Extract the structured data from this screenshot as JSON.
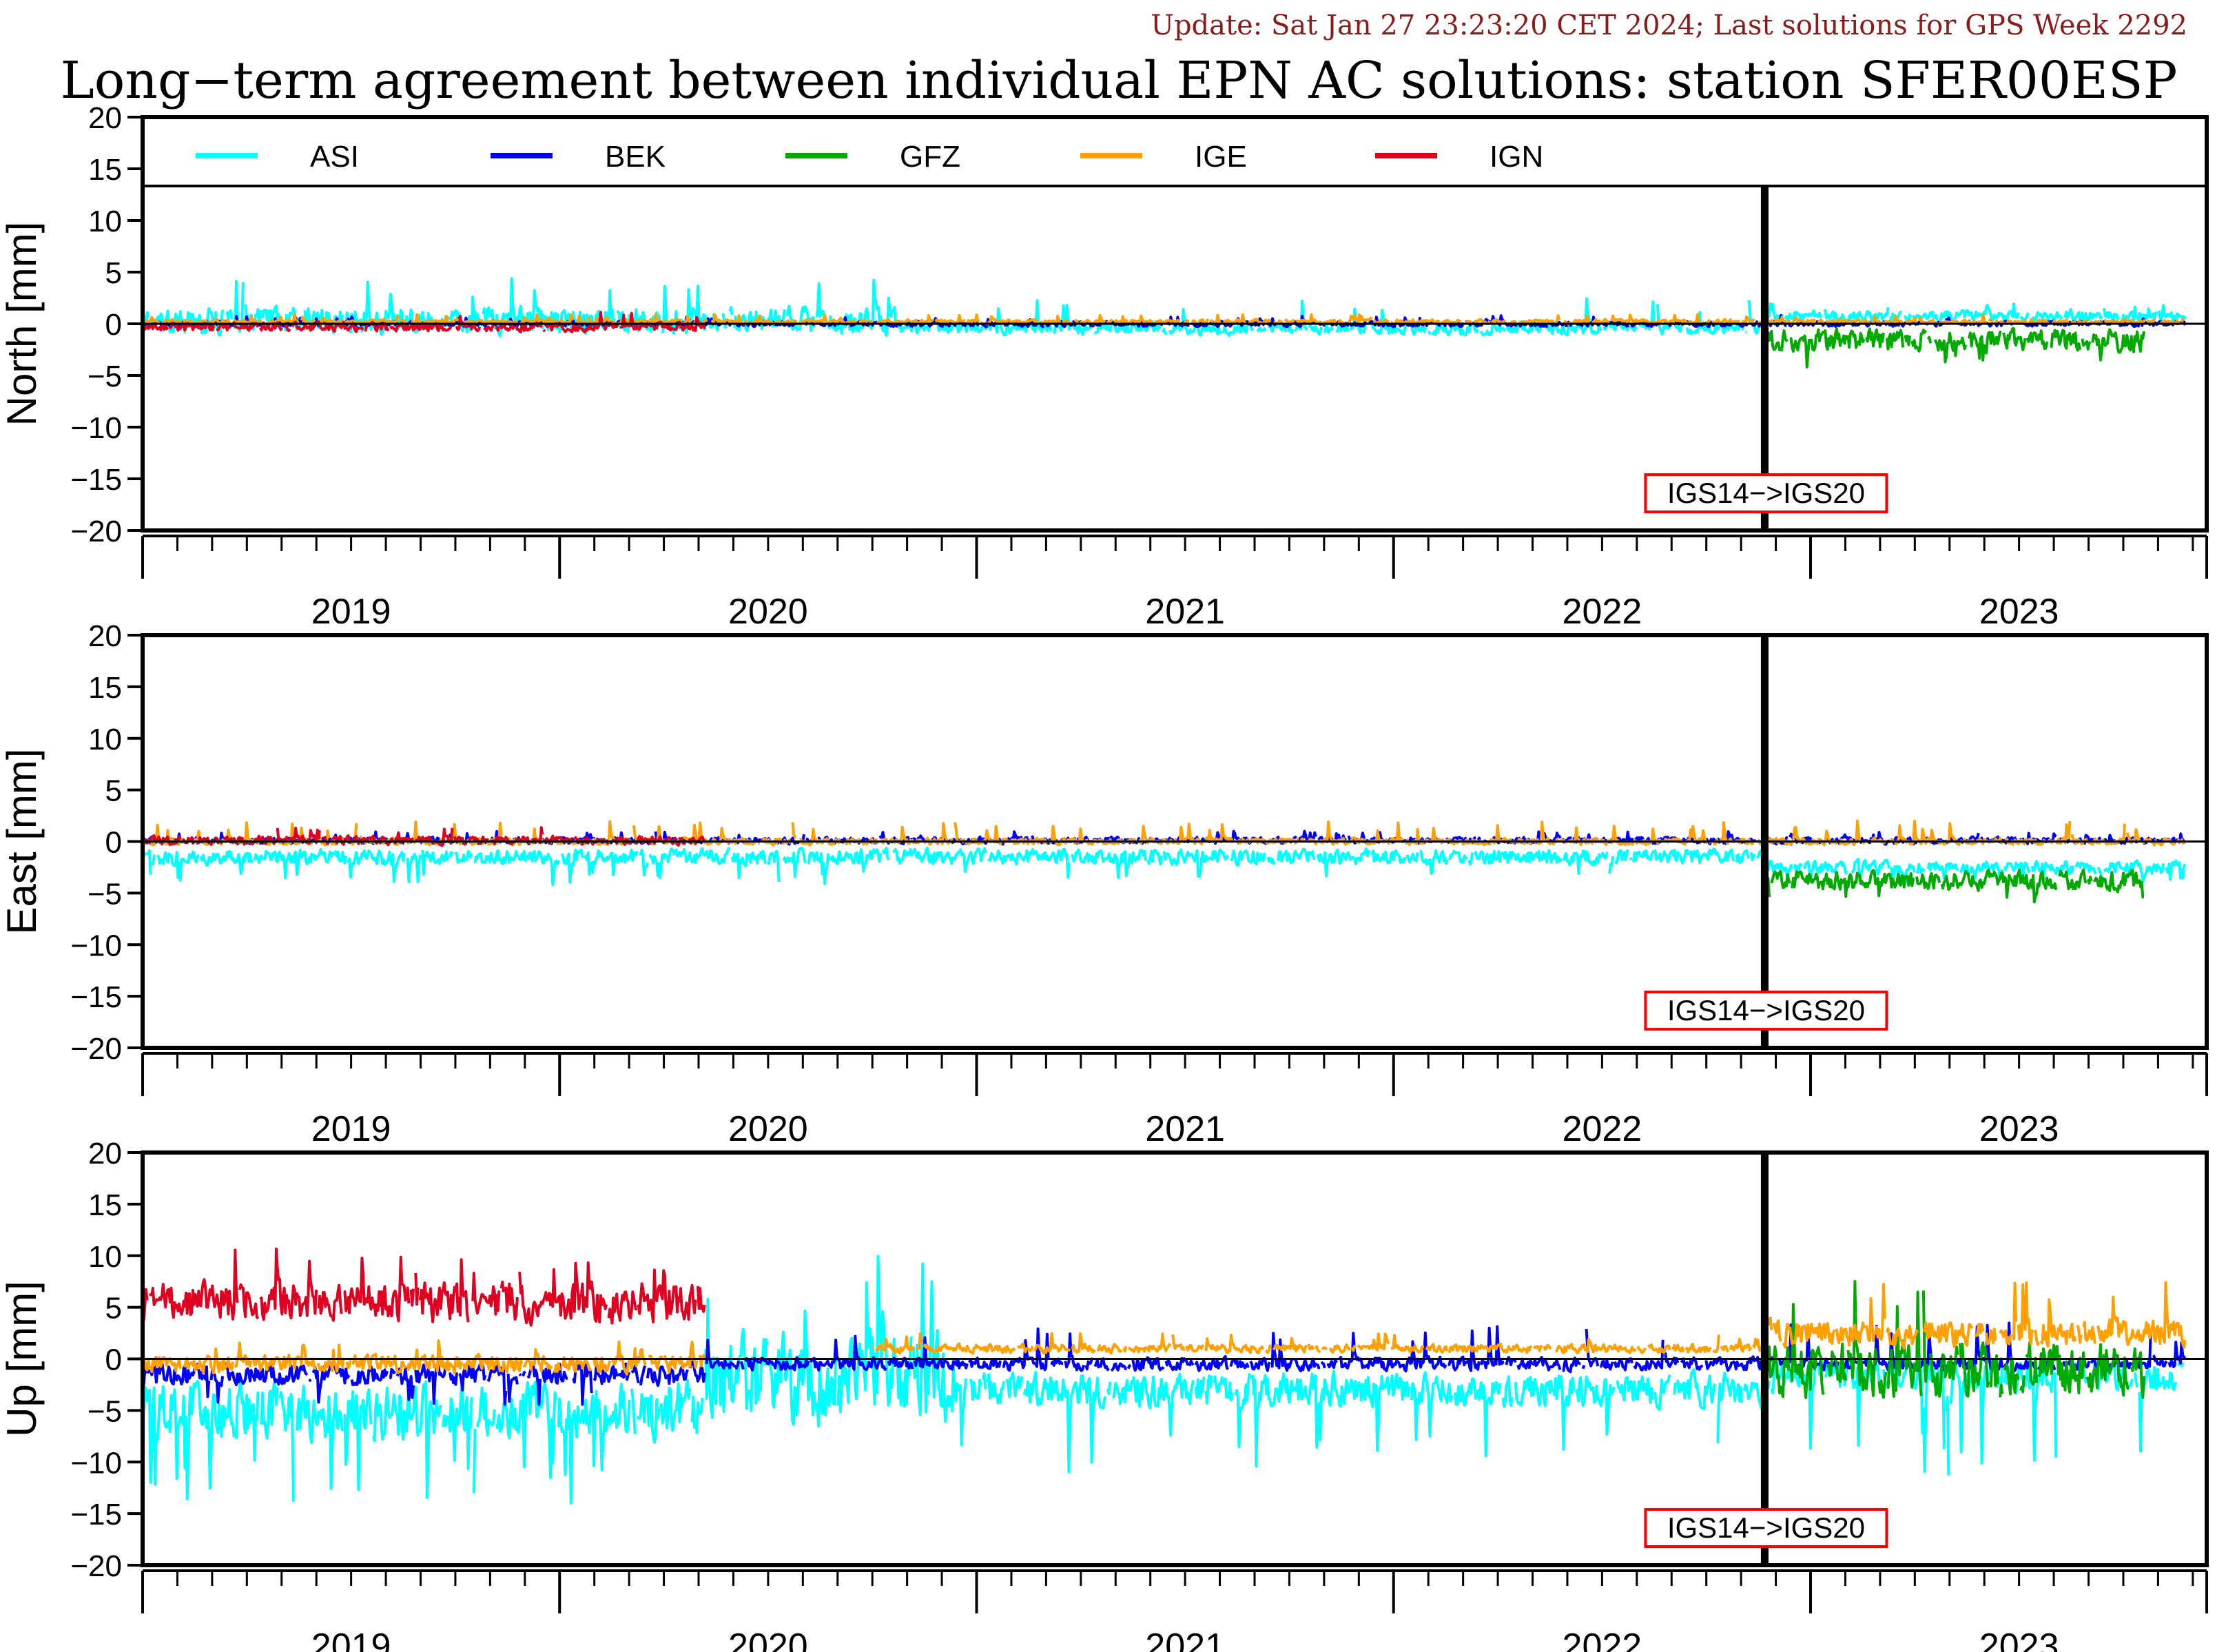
{
  "header": {
    "update_text": "Update: Sat Jan 27 23:23:20 CET 2024; Last solutions for GPS Week 2292"
  },
  "chart_data": {
    "type": "line",
    "title": "Long−term agreement between individual EPN AC solutions: station SFER00ESP",
    "x_unit": "year",
    "xlim": [
      2018.5,
      2023.45
    ],
    "year_labels": [
      "2019",
      "2020",
      "2021",
      "2022",
      "2023"
    ],
    "ylim": [
      -20,
      20
    ],
    "yticks": [
      "20",
      "15",
      "10",
      "5",
      "0",
      "−5",
      "−10",
      "−15",
      "−20"
    ],
    "reference_frame_change": {
      "x": 2022.39,
      "label": "IGS14−>IGS20"
    },
    "legend": {
      "placement": "top, inside first panel",
      "entries": [
        {
          "name": "ASI",
          "color": "#00ffff"
        },
        {
          "name": "BEK",
          "color": "#0000ff"
        },
        {
          "name": "GFZ",
          "color": "#00aa00"
        },
        {
          "name": "IGE",
          "color": "#ffa000"
        },
        {
          "name": "IGN",
          "color": "#e00020"
        }
      ]
    },
    "panels": [
      {
        "ylabel": "North [mm]",
        "series": [
          {
            "name": "ASI",
            "color": "#00ffff",
            "segments": [
              {
                "range": [
                  2018.5,
                  2020.3
                ],
                "mean": 0.3,
                "noise": 1.2,
                "spike_max": 4.5
              },
              {
                "range": [
                  2020.3,
                  2022.39
                ],
                "mean": -0.4,
                "noise": 0.6,
                "spike_max": 2.5
              },
              {
                "range": [
                  2022.39,
                  2023.4
                ],
                "mean": 0.7,
                "noise": 0.5,
                "spike_max": 2.0
              }
            ]
          },
          {
            "name": "BEK",
            "color": "#0000ff",
            "segments": [
              {
                "range": [
                  2018.5,
                  2023.4
                ],
                "mean": 0.0,
                "noise": 0.25,
                "spike_max": 0.8
              }
            ]
          },
          {
            "name": "GFZ",
            "color": "#00aa00",
            "segments": [
              {
                "range": [
                  2022.39,
                  2023.3
                ],
                "mean": -1.6,
                "noise": 1.0,
                "spike_max": -4.5
              }
            ]
          },
          {
            "name": "IGE",
            "color": "#ffa000",
            "segments": [
              {
                "range": [
                  2018.5,
                  2023.4
                ],
                "mean": 0.2,
                "noise": 0.2,
                "spike_max": 0.9
              }
            ]
          },
          {
            "name": "IGN",
            "color": "#e00020",
            "segments": [
              {
                "range": [
                  2018.5,
                  2019.85
                ],
                "mean": -0.3,
                "noise": 0.4,
                "spike_max": 1.2
              }
            ]
          }
        ]
      },
      {
        "ylabel": "East [mm]",
        "series": [
          {
            "name": "ASI",
            "color": "#00ffff",
            "segments": [
              {
                "range": [
                  2018.5,
                  2022.39
                ],
                "mean": -1.5,
                "noise": 0.7,
                "spike_max": -4.2
              },
              {
                "range": [
                  2022.39,
                  2023.4
                ],
                "mean": -2.5,
                "noise": 0.6,
                "spike_max": -4.0
              }
            ]
          },
          {
            "name": "BEK",
            "color": "#0000ff",
            "segments": [
              {
                "range": [
                  2018.5,
                  2023.4
                ],
                "mean": 0.1,
                "noise": 0.3,
                "spike_max": 1.0
              }
            ]
          },
          {
            "name": "GFZ",
            "color": "#00aa00",
            "segments": [
              {
                "range": [
                  2022.39,
                  2023.3
                ],
                "mean": -3.8,
                "noise": 0.9,
                "spike_max": -6.0
              }
            ]
          },
          {
            "name": "IGE",
            "color": "#ffa000",
            "segments": [
              {
                "range": [
                  2018.5,
                  2023.4
                ],
                "mean": 0.0,
                "noise": 0.3,
                "spike_max": 2.0
              }
            ]
          },
          {
            "name": "IGN",
            "color": "#e00020",
            "segments": [
              {
                "range": [
                  2018.5,
                  2019.85
                ],
                "mean": 0.1,
                "noise": 0.4,
                "spike_max": 1.4
              }
            ]
          }
        ]
      },
      {
        "ylabel": "Up [mm]",
        "series": [
          {
            "name": "ASI",
            "color": "#00ffff",
            "segments": [
              {
                "range": [
                  2018.5,
                  2019.85
                ],
                "mean": -5.0,
                "noise": 2.5,
                "spike_max": -14.0
              },
              {
                "range": [
                  2019.85,
                  2020.45
                ],
                "mean": -2.0,
                "noise": 4.0,
                "spike_max": 10.5
              },
              {
                "range": [
                  2020.45,
                  2022.39
                ],
                "mean": -3.0,
                "noise": 1.5,
                "spike_max": -11.5
              },
              {
                "range": [
                  2022.39,
                  2023.4
                ],
                "mean": -1.5,
                "noise": 1.5,
                "spike_max": -11.5
              }
            ]
          },
          {
            "name": "BEK",
            "color": "#0000ff",
            "segments": [
              {
                "range": [
                  2018.5,
                  2019.85
                ],
                "mean": -1.5,
                "noise": 1.0,
                "spike_max": -4.5
              },
              {
                "range": [
                  2019.85,
                  2023.4
                ],
                "mean": -0.5,
                "noise": 0.6,
                "spike_max": 3.5
              }
            ]
          },
          {
            "name": "GFZ",
            "color": "#00aa00",
            "segments": [
              {
                "range": [
                  2022.39,
                  2023.3
                ],
                "mean": -1.0,
                "noise": 2.5,
                "spike_max": 8.5
              }
            ]
          },
          {
            "name": "IGE",
            "color": "#ffa000",
            "segments": [
              {
                "range": [
                  2018.5,
                  2019.85
                ],
                "mean": -0.5,
                "noise": 0.8,
                "spike_max": 2.0
              },
              {
                "range": [
                  2020.25,
                  2022.39
                ],
                "mean": 1.0,
                "noise": 0.4,
                "spike_max": 2.5
              },
              {
                "range": [
                  2022.39,
                  2023.4
                ],
                "mean": 2.5,
                "noise": 1.2,
                "spike_max": 7.5
              }
            ]
          },
          {
            "name": "IGN",
            "color": "#e00020",
            "segments": [
              {
                "range": [
                  2018.5,
                  2019.85
                ],
                "mean": 5.5,
                "noise": 1.8,
                "spike_max": 11.0
              }
            ]
          }
        ]
      }
    ]
  }
}
